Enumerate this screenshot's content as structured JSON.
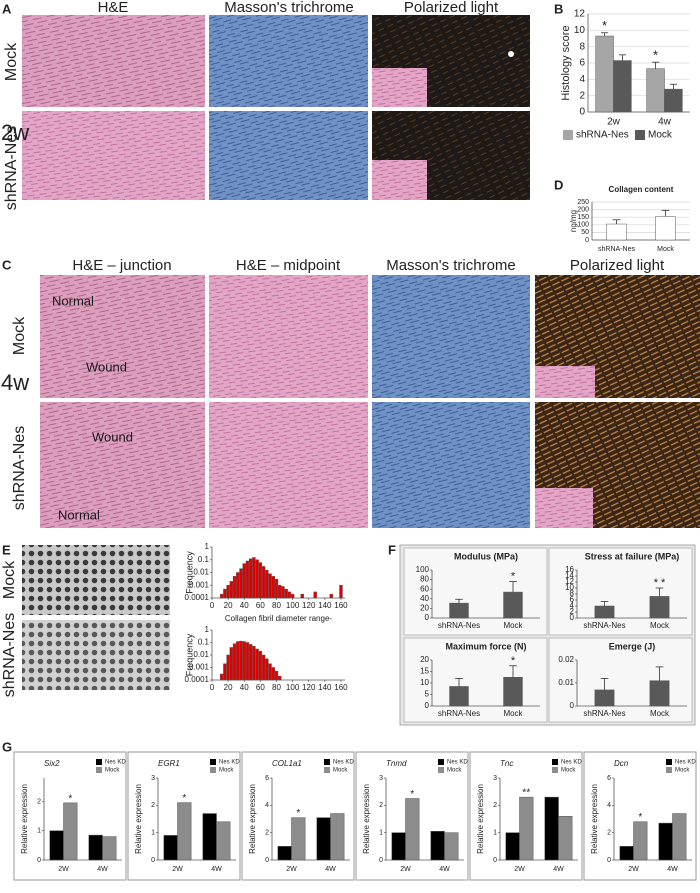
{
  "panel_labels": [
    "A",
    "B",
    "C",
    "D",
    "E",
    "F",
    "G"
  ],
  "panel_a": {
    "columns": [
      "H&E",
      "Masson's trichrome",
      "Polarized light"
    ],
    "rows": [
      "Mock",
      "shRNA-Nes"
    ],
    "time": "2w"
  },
  "panel_c": {
    "columns": [
      "H&E – junction",
      "H&E – midpoint",
      "Masson's trichrome",
      "Polarized light"
    ],
    "rows": [
      "Mock",
      "shRNA-Nes"
    ],
    "time": "4w",
    "annotations": [
      "Normal",
      "Wound",
      "Wound",
      "Normal"
    ]
  },
  "panel_e": {
    "rows": [
      "Mock",
      "shRNA-Nes"
    ]
  },
  "chart_data": [
    {
      "type": "bar",
      "y_label": "Histology score",
      "categories": [
        "2w",
        "4w"
      ],
      "series": [
        {
          "name": "shRNA-Nes",
          "color": "#a6a6a6",
          "values": [
            9.3,
            5.3
          ],
          "errors": [
            0.4,
            0.8
          ],
          "significance": [
            "*",
            "*"
          ]
        },
        {
          "name": "Mock",
          "color": "#595959",
          "values": [
            6.3,
            2.8
          ],
          "errors": [
            0.7,
            0.6
          ]
        }
      ],
      "ylim": [
        0,
        12
      ],
      "yticks": [
        0,
        2,
        4,
        6,
        8,
        10,
        12
      ],
      "grid": true,
      "legend": "bottom"
    },
    {
      "type": "bar",
      "title": "Collagen content",
      "y_label": "ng/mg",
      "categories": [
        "shRNA-Nes",
        "Mock"
      ],
      "values": [
        105,
        155
      ],
      "errors": [
        28,
        40
      ],
      "color": "#ffffff",
      "ylim": [
        0,
        250
      ],
      "yticks": [
        0,
        50,
        100,
        150,
        200,
        250
      ],
      "grid": true
    },
    {
      "type": "bar",
      "y_label": "Frequency",
      "x_label": "Collagen fibril diameter range-",
      "color": "#e00000",
      "log_scale": true,
      "x": [
        12,
        16,
        20,
        24,
        28,
        32,
        36,
        40,
        44,
        48,
        52,
        56,
        60,
        64,
        68,
        72,
        76,
        80,
        84,
        88,
        92,
        96,
        100,
        112,
        128,
        148,
        160
      ],
      "values": [
        0.0002,
        0.0005,
        0.001,
        0.002,
        0.005,
        0.01,
        0.02,
        0.05,
        0.08,
        0.12,
        0.15,
        0.1,
        0.06,
        0.03,
        0.015,
        0.008,
        0.005,
        0.003,
        0.001,
        0.0008,
        0.0005,
        0.0003,
        0.0002,
        0.0002,
        0.0003,
        0.0002,
        0.001
      ],
      "ylim": [
        0.0001,
        1
      ],
      "yticks": [
        0.0001,
        0.001,
        0.01,
        0.1,
        1
      ],
      "xlim": [
        0,
        165
      ],
      "xticks": [
        0,
        20,
        40,
        60,
        80,
        100,
        120,
        140,
        160
      ]
    },
    {
      "type": "bar",
      "y_label": "Frequency",
      "color": "#e00000",
      "log_scale": true,
      "x": [
        12,
        16,
        20,
        24,
        28,
        32,
        36,
        40,
        44,
        48,
        52,
        56,
        60,
        64,
        68,
        72,
        76,
        80,
        84
      ],
      "values": [
        0.0003,
        0.002,
        0.01,
        0.04,
        0.08,
        0.12,
        0.13,
        0.12,
        0.1,
        0.07,
        0.05,
        0.03,
        0.02,
        0.01,
        0.005,
        0.002,
        0.001,
        0.0005,
        0.0002
      ],
      "ylim": [
        0.0001,
        1
      ],
      "yticks": [
        0.0001,
        0.001,
        0.01,
        0.1,
        1
      ],
      "xlim": [
        0,
        165
      ],
      "xticks": [
        0,
        20,
        40,
        60,
        80,
        100,
        120,
        140,
        160
      ]
    },
    {
      "type": "bar",
      "title": "Modulus (MPa)",
      "categories": [
        "shRNA-Nes",
        "Mock"
      ],
      "values": [
        31,
        54
      ],
      "errors": [
        8,
        22
      ],
      "significance": [
        null,
        "*"
      ],
      "color": "#595959",
      "ylim": [
        0,
        100
      ],
      "yticks": [
        0,
        20,
        40,
        60,
        80,
        100
      ]
    },
    {
      "type": "bar",
      "title": "Stress at failure (MPa)",
      "categories": [
        "shRNA-Nes",
        "Mock"
      ],
      "values": [
        4,
        7.2
      ],
      "errors": [
        1.5,
        2.8
      ],
      "significance": [
        null,
        "* *"
      ],
      "color": "#595959",
      "ylim": [
        0,
        16
      ],
      "yticks": [
        0,
        2,
        4,
        6,
        8,
        10,
        12,
        14,
        16
      ]
    },
    {
      "type": "bar",
      "title": "Maximum force (N)",
      "categories": [
        "shRNA-Nes",
        "Mock"
      ],
      "values": [
        8.5,
        12.5
      ],
      "errors": [
        3.5,
        5
      ],
      "significance": [
        null,
        "*"
      ],
      "color": "#595959",
      "ylim": [
        0,
        20
      ],
      "yticks": [
        0,
        5,
        10,
        15,
        20
      ]
    },
    {
      "type": "bar",
      "title": "Emerge (J)",
      "categories": [
        "shRNA-Nes",
        "Mock"
      ],
      "values": [
        0.007,
        0.011
      ],
      "errors": [
        0.005,
        0.006
      ],
      "color": "#595959",
      "ylim": [
        0,
        0.02
      ],
      "yticks": [
        0,
        0.01,
        0.02
      ]
    },
    {
      "type": "bar",
      "title": "Six2",
      "y_label": "Relative expression",
      "categories": [
        "2W",
        "4W"
      ],
      "legend": "upper right",
      "series": [
        {
          "name": "Nes KD",
          "color": "#000000",
          "values": [
            1,
            0.85
          ]
        },
        {
          "name": "Mock",
          "color": "#8c8c8c",
          "values": [
            1.95,
            0.8
          ],
          "significance": [
            "*",
            null
          ]
        }
      ],
      "ylim": [
        0,
        2.8
      ],
      "yticks": [
        0,
        1,
        2
      ]
    },
    {
      "type": "bar",
      "title": "EGR1",
      "y_label": "Relative expression",
      "categories": [
        "2W",
        "4W"
      ],
      "legend": "upper right",
      "series": [
        {
          "name": "Nes KD",
          "color": "#000000",
          "values": [
            0.9,
            1.7
          ]
        },
        {
          "name": "Mock",
          "color": "#8c8c8c",
          "values": [
            2.1,
            1.4
          ],
          "significance": [
            "*",
            null
          ]
        }
      ],
      "ylim": [
        0,
        3
      ],
      "yticks": [
        0,
        1,
        2,
        3
      ]
    },
    {
      "type": "bar",
      "title": "COL1a1",
      "y_label": "Relative expression",
      "categories": [
        "2W",
        "4W"
      ],
      "legend": "upper right",
      "series": [
        {
          "name": "Nes KD",
          "color": "#000000",
          "values": [
            1,
            3.1
          ]
        },
        {
          "name": "Mock",
          "color": "#8c8c8c",
          "values": [
            3.1,
            3.4
          ],
          "significance": [
            "*",
            null
          ]
        }
      ],
      "ylim": [
        0,
        6
      ],
      "yticks": [
        0,
        2,
        4,
        6
      ]
    },
    {
      "type": "bar",
      "title": "Tnmd",
      "y_label": "Relative expression",
      "categories": [
        "2W",
        "4W"
      ],
      "legend": "upper right",
      "series": [
        {
          "name": "Nes KD",
          "color": "#000000",
          "values": [
            1,
            1.05
          ]
        },
        {
          "name": "Mock",
          "color": "#8c8c8c",
          "values": [
            2.25,
            1
          ],
          "significance": [
            "*",
            null
          ]
        }
      ],
      "ylim": [
        0,
        3
      ],
      "yticks": [
        0,
        1,
        2,
        3
      ]
    },
    {
      "type": "bar",
      "title": "Tnc",
      "y_label": "Relative expression",
      "categories": [
        "2W",
        "4W"
      ],
      "legend": "upper right",
      "series": [
        {
          "name": "Nes KD",
          "color": "#000000",
          "values": [
            1,
            2.3
          ]
        },
        {
          "name": "Mock",
          "color": "#8c8c8c",
          "values": [
            2.3,
            1.6
          ],
          "significance": [
            "**",
            null
          ]
        }
      ],
      "ylim": [
        0,
        3
      ],
      "yticks": [
        0,
        1,
        2,
        3
      ]
    },
    {
      "type": "bar",
      "title": "Dcn",
      "y_label": "Relative expression",
      "categories": [
        "2W",
        "4W"
      ],
      "legend": "upper right",
      "series": [
        {
          "name": "Nes KD",
          "color": "#000000",
          "values": [
            1,
            2.7
          ]
        },
        {
          "name": "Mock",
          "color": "#8c8c8c",
          "values": [
            2.8,
            3.4
          ],
          "significance": [
            "*",
            null
          ]
        }
      ],
      "ylim": [
        0,
        6
      ],
      "yticks": [
        0,
        2,
        4,
        6
      ]
    }
  ]
}
